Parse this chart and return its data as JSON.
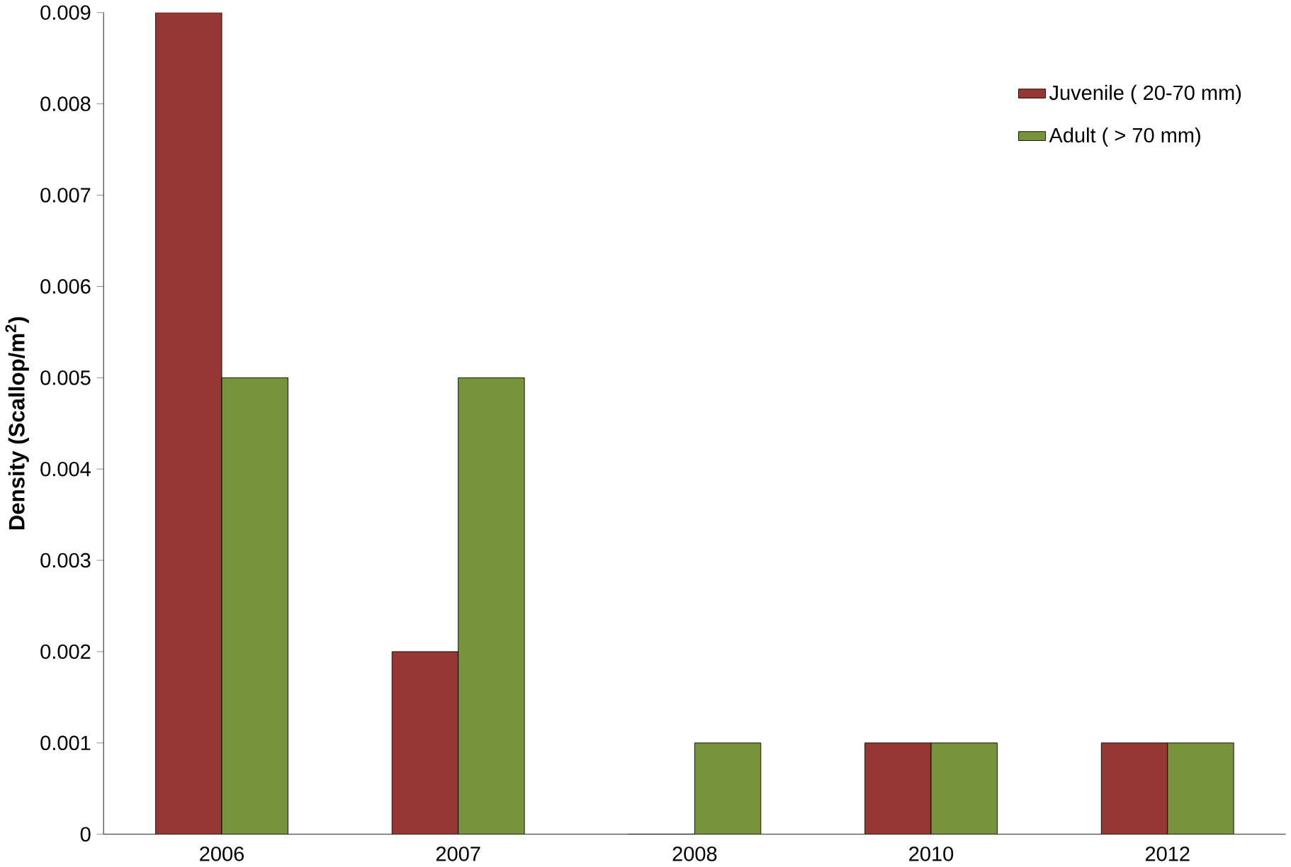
{
  "chart_data": {
    "type": "bar",
    "ylabel": "Density (Scallop/m$^{2}$)",
    "categories": [
      "2006",
      "2007",
      "2008",
      "2010",
      "2012"
    ],
    "series": [
      {
        "name": "Juvenile ( 20-70 mm)",
        "color": "#953735",
        "values": [
          0.009,
          0.002,
          0,
          0.001,
          0.001
        ]
      },
      {
        "name": "Adult ( > 70 mm)",
        "color": "#77933c",
        "values": [
          0.005,
          0.005,
          0.001,
          0.001,
          0.001
        ]
      }
    ],
    "ylim": [
      0,
      0.009
    ],
    "yticks": [
      0,
      0.001,
      0.002,
      0.003,
      0.004,
      0.005,
      0.006,
      0.007,
      0.008,
      0.009
    ],
    "grid": false,
    "legend": "top right"
  }
}
